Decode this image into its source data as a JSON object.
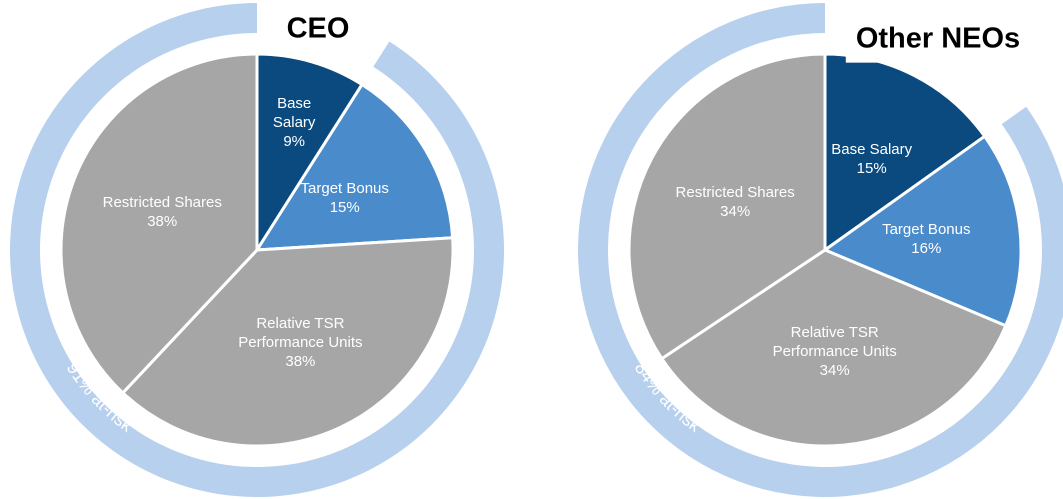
{
  "chart_data": [
    {
      "type": "pie",
      "title": "CEO",
      "categories": [
        "Base Salary",
        "Target Bonus",
        "Relative TSR Performance Units",
        "Restricted Shares"
      ],
      "values": [
        9,
        15,
        38,
        38
      ],
      "value_labels": [
        "9%",
        "15%",
        "38%",
        "38%"
      ],
      "colors": [
        "#0b4a7e",
        "#4a8bcb",
        "#a6a6a6",
        "#a6a6a6"
      ],
      "at_risk": 91,
      "at_risk_label": "91% at-risk",
      "ring_color": "#b6d0ee"
    },
    {
      "type": "pie",
      "title": "Other NEOs",
      "categories": [
        "Base Salary",
        "Target Bonus",
        "Relative TSR Performance Units",
        "Restricted Shares"
      ],
      "values": [
        15,
        16,
        34,
        34
      ],
      "value_labels": [
        "15%",
        "16%",
        "34%",
        "34%"
      ],
      "colors": [
        "#0b4a7e",
        "#4a8bcb",
        "#a6a6a6",
        "#a6a6a6"
      ],
      "at_risk": 84,
      "at_risk_label": "84% at-risk",
      "ring_color": "#b6d0ee"
    }
  ]
}
